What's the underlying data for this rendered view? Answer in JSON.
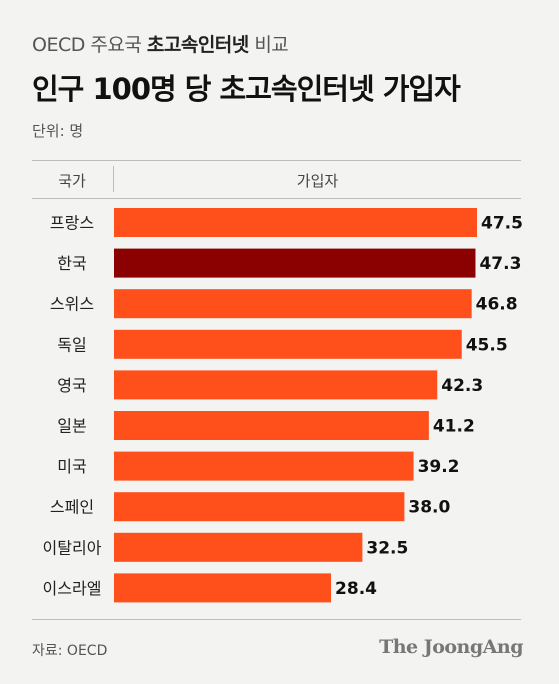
{
  "header": {
    "subtitle_prefix": "OECD 주요국 ",
    "subtitle_highlight": "초고속인터넷",
    "subtitle_suffix": " 비교",
    "title": "인구 100명 당 초고속인터넷 가입자",
    "unit": "단위: 명"
  },
  "table_header": {
    "country": "국가",
    "value": "가입자"
  },
  "footer": {
    "source": "자료: OECD",
    "brand": "The JoongAng"
  },
  "colors": {
    "bar": "#ff4f1a",
    "highlight_bar": "#8b0000",
    "background": "#f3f3f1"
  },
  "chart_data": {
    "type": "bar",
    "orientation": "horizontal",
    "categories": [
      "프랑스",
      "한국",
      "스위스",
      "독일",
      "영국",
      "일본",
      "미국",
      "스페인",
      "이탈리아",
      "이스라엘"
    ],
    "values": [
      47.5,
      47.3,
      46.8,
      45.5,
      42.3,
      41.2,
      39.2,
      38.0,
      32.5,
      28.4
    ],
    "value_labels": [
      "47.5",
      "47.3",
      "46.8",
      "45.5",
      "42.3",
      "41.2",
      "39.2",
      "38.0",
      "32.5",
      "28.4"
    ],
    "highlight_index": 1,
    "xlim": [
      0,
      47.5
    ]
  }
}
